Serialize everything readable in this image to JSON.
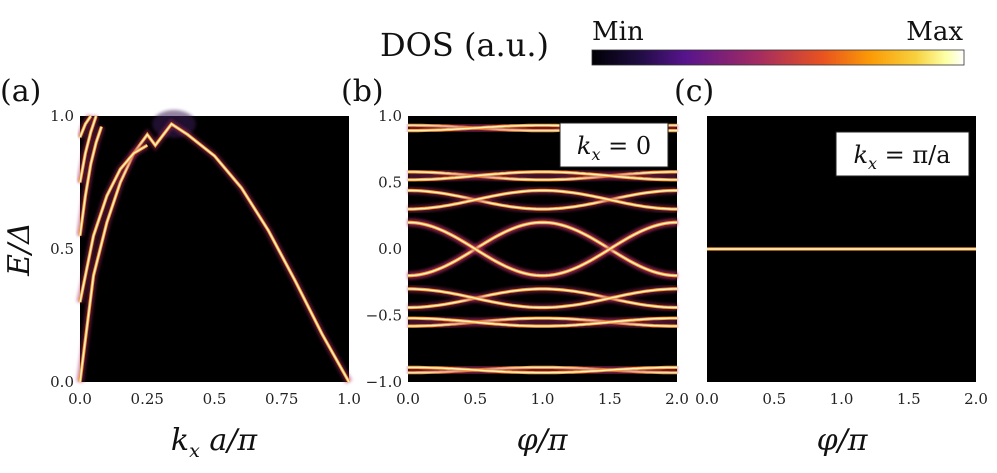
{
  "colorbar": {
    "title": "DOS (a.u.)",
    "min_label": "Min",
    "max_label": "Max",
    "colormap": [
      "#000004",
      "#1d0c3e",
      "#56148d",
      "#a52c60",
      "#e8531f",
      "#fb9b06",
      "#f7d13d",
      "#fcffa4",
      "#ffffff"
    ]
  },
  "chart_data": [
    {
      "panel_label": "(a)",
      "type": "heatmap",
      "xlabel": "k_x a/π",
      "xlabel_main": "k",
      "xlabel_sub": "x",
      "xlabel_rest": " a/π",
      "ylabel": "E/Δ",
      "xlim": [
        0.0,
        1.0
      ],
      "ylim": [
        0.0,
        1.0
      ],
      "xticks": [
        "0.0",
        "0.25",
        "0.5",
        "0.75",
        "1.0"
      ],
      "xtick_values": [
        0.0,
        0.25,
        0.5,
        0.75,
        1.0
      ],
      "yticks": [
        "0.0",
        "0.5",
        "1.0"
      ],
      "ytick_values": [
        0.0,
        0.5,
        1.0
      ],
      "annotation": "",
      "bands": [
        {
          "name": "main band",
          "x": [
            0.0,
            0.05,
            0.1,
            0.15,
            0.2,
            0.25,
            0.28,
            0.31,
            0.34,
            0.4,
            0.5,
            0.6,
            0.7,
            0.8,
            0.9,
            1.0
          ],
          "y": [
            0.0,
            0.4,
            0.6,
            0.75,
            0.86,
            0.93,
            0.89,
            0.93,
            0.97,
            0.93,
            0.85,
            0.73,
            0.57,
            0.38,
            0.18,
            0.0
          ]
        },
        {
          "name": "inner band",
          "x": [
            0.0,
            0.05,
            0.1,
            0.15,
            0.2,
            0.25
          ],
          "y": [
            0.3,
            0.55,
            0.7,
            0.8,
            0.86,
            0.89
          ]
        },
        {
          "name": "edge band 1",
          "x": [
            0.0,
            0.02,
            0.04,
            0.06,
            0.08
          ],
          "y": [
            0.55,
            0.7,
            0.82,
            0.9,
            0.96
          ]
        },
        {
          "name": "edge band 2",
          "x": [
            0.0,
            0.02,
            0.04,
            0.06
          ],
          "y": [
            0.75,
            0.86,
            0.94,
            1.0
          ]
        },
        {
          "name": "edge band 3",
          "x": [
            0.0,
            0.02,
            0.04
          ],
          "y": [
            0.92,
            0.97,
            1.0
          ]
        }
      ]
    },
    {
      "panel_label": "(b)",
      "type": "heatmap",
      "xlabel": "φ/π",
      "ylabel": "",
      "xlim": [
        0.0,
        2.0
      ],
      "ylim": [
        -1.0,
        1.0
      ],
      "xticks": [
        "0.0",
        "0.5",
        "1.0",
        "1.5",
        "2.0"
      ],
      "xtick_values": [
        0.0,
        0.5,
        1.0,
        1.5,
        2.0
      ],
      "yticks": [
        "−1.0",
        "−0.5",
        "0.0",
        "0.5",
        "1.0"
      ],
      "ytick_values": [
        -1.0,
        -0.5,
        0.0,
        0.5,
        1.0
      ],
      "annotation": "k_x = 0",
      "annotation_main": "k",
      "annotation_sub": "x",
      "annotation_rest": " = 0",
      "bands": [
        {
          "name": "level pair 1",
          "center": 0.0,
          "amplitude": 0.2,
          "shape": "cos"
        },
        {
          "name": "level pair 2",
          "center": 0.37,
          "amplitude": 0.07,
          "shape": "cos"
        },
        {
          "name": "level pair 3",
          "center": 0.55,
          "amplitude": 0.03,
          "shape": "cos"
        },
        {
          "name": "level pair 4",
          "center": 0.91,
          "amplitude": 0.02,
          "shape": "cos"
        }
      ]
    },
    {
      "panel_label": "(c)",
      "type": "heatmap",
      "xlabel": "φ/π",
      "ylabel": "",
      "xlim": [
        0.0,
        2.0
      ],
      "ylim": [
        -1.0,
        1.0
      ],
      "xticks": [
        "0.0",
        "0.5",
        "1.0",
        "1.5",
        "2.0"
      ],
      "xtick_values": [
        0.0,
        0.5,
        1.0,
        1.5,
        2.0
      ],
      "yticks": [],
      "annotation": "k_x = π/a",
      "annotation_main": "k",
      "annotation_sub": "x",
      "annotation_rest": " = π/a",
      "bands": [
        {
          "name": "flat band",
          "x": [
            0.0,
            2.0
          ],
          "y": [
            0.0,
            0.0
          ]
        }
      ]
    }
  ]
}
